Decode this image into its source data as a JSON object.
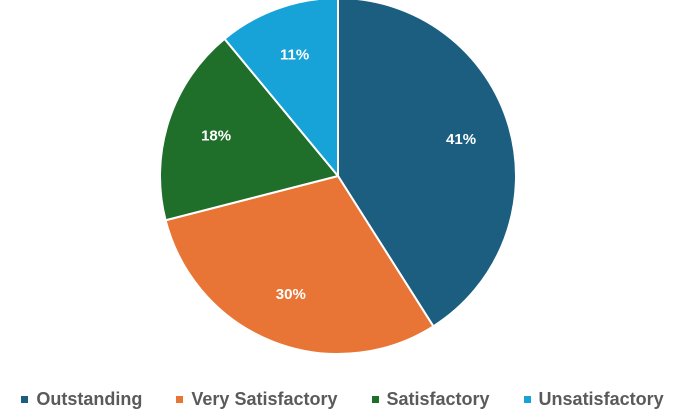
{
  "chart_data": {
    "type": "pie",
    "title": "",
    "categories": [
      "Outstanding",
      "Very Satisfactory",
      "Satisfactory",
      "Unsatisfactory"
    ],
    "values": [
      41,
      30,
      18,
      11
    ],
    "labels": [
      "41%",
      "30%",
      "18%",
      "11%"
    ],
    "colors": [
      "#1b5e80",
      "#e87535",
      "#1f6e2a",
      "#17a2d8"
    ],
    "start_angle": "12 o'clock",
    "direction": "clockwise",
    "legend_position": "bottom"
  },
  "legend": {
    "items": [
      {
        "label": "Outstanding",
        "color": "#1b5e80"
      },
      {
        "label": "Very Satisfactory",
        "color": "#e87535"
      },
      {
        "label": "Satisfactory",
        "color": "#1f6e2a"
      },
      {
        "label": "Unsatisfactory",
        "color": "#17a2d8"
      }
    ]
  }
}
